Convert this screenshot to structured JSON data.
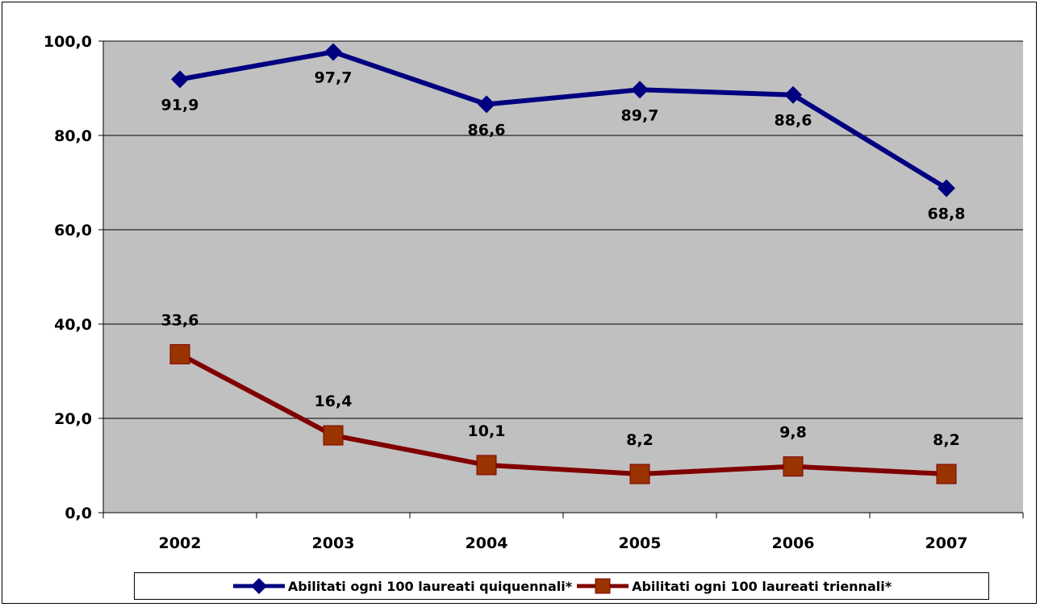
{
  "chart_data": {
    "type": "line",
    "title": "",
    "xlabel": "",
    "ylabel": "",
    "x": [
      "2002",
      "2003",
      "2004",
      "2005",
      "2006",
      "2007"
    ],
    "ylim": [
      0,
      100
    ],
    "yticks": [
      "0,0",
      "20,0",
      "40,0",
      "60,0",
      "80,0",
      "100,0"
    ],
    "grid": true,
    "legend_position": "bottom",
    "plot_background": "#C0C0C0",
    "series": [
      {
        "name": "Abilitati ogni 100 laureati quiquennali*",
        "values": [
          91.9,
          97.7,
          86.6,
          89.7,
          88.6,
          68.8
        ],
        "labels": [
          "91,9",
          "97,7",
          "86,6",
          "89,7",
          "88,6",
          "68,8"
        ],
        "color": "#000080",
        "marker": "diamond",
        "label_position": "below"
      },
      {
        "name": "Abilitati ogni 100 laureati triennali*",
        "values": [
          33.6,
          16.4,
          10.1,
          8.2,
          9.8,
          8.2
        ],
        "labels": [
          "33,6",
          "16,4",
          "10,1",
          "8,2",
          "9,8",
          "8,2"
        ],
        "color": "#800000",
        "marker_color": "#993300",
        "marker": "square",
        "label_position": "above"
      }
    ]
  }
}
